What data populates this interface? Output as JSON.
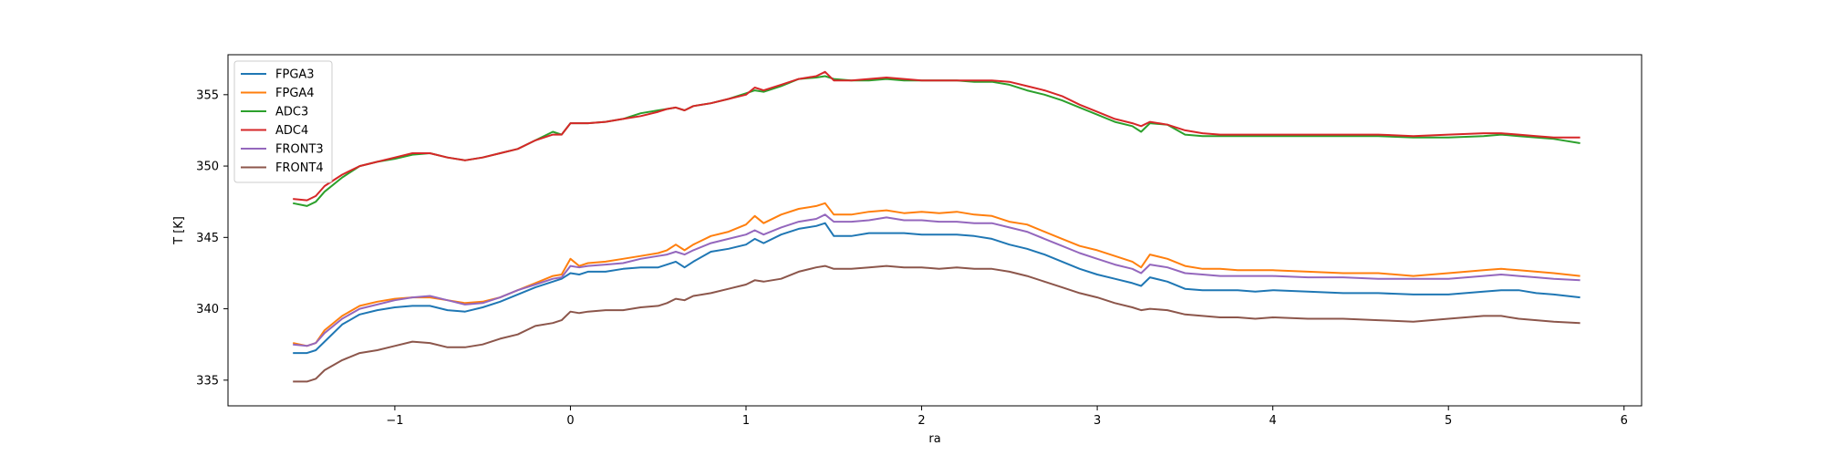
{
  "chart_data": {
    "type": "line",
    "title": "",
    "xlabel": "ra",
    "ylabel": "T [K]",
    "xlim": [
      -1.95,
      6.1
    ],
    "ylim": [
      333.2,
      357.8
    ],
    "xticks": [
      -1,
      0,
      1,
      2,
      3,
      4,
      5,
      6
    ],
    "xtick_labels": [
      "−1",
      "0",
      "1",
      "2",
      "3",
      "4",
      "5",
      "6"
    ],
    "yticks": [
      335,
      340,
      345,
      350,
      355
    ],
    "ytick_labels": [
      "335",
      "340",
      "345",
      "350",
      "355"
    ],
    "grid": false,
    "legend_position": "upper left",
    "series": [
      {
        "name": "FPGA3",
        "color": "#1f77b4",
        "x": [
          -1.58,
          -1.5,
          -1.45,
          -1.4,
          -1.3,
          -1.2,
          -1.1,
          -1.0,
          -0.9,
          -0.8,
          -0.7,
          -0.6,
          -0.5,
          -0.4,
          -0.3,
          -0.2,
          -0.1,
          -0.05,
          0.0,
          0.05,
          0.1,
          0.2,
          0.3,
          0.4,
          0.5,
          0.55,
          0.6,
          0.65,
          0.7,
          0.8,
          0.9,
          1.0,
          1.05,
          1.1,
          1.2,
          1.3,
          1.4,
          1.45,
          1.5,
          1.6,
          1.7,
          1.8,
          1.9,
          2.0,
          2.1,
          2.2,
          2.3,
          2.4,
          2.5,
          2.6,
          2.7,
          2.8,
          2.9,
          3.0,
          3.1,
          3.2,
          3.25,
          3.3,
          3.4,
          3.5,
          3.6,
          3.7,
          3.8,
          3.9,
          4.0,
          4.2,
          4.4,
          4.6,
          4.8,
          5.0,
          5.2,
          5.3,
          5.4,
          5.5,
          5.6,
          5.75
        ],
        "values": [
          336.9,
          336.9,
          337.1,
          337.7,
          338.9,
          339.6,
          339.9,
          340.1,
          340.2,
          340.2,
          339.9,
          339.8,
          340.1,
          340.5,
          341.0,
          341.5,
          341.9,
          342.1,
          342.5,
          342.4,
          342.6,
          342.6,
          342.8,
          342.9,
          342.9,
          343.1,
          343.3,
          342.9,
          343.3,
          344.0,
          344.2,
          344.5,
          344.9,
          344.6,
          345.2,
          345.6,
          345.8,
          346.0,
          345.1,
          345.1,
          345.3,
          345.3,
          345.3,
          345.2,
          345.2,
          345.2,
          345.1,
          344.9,
          344.5,
          344.2,
          343.8,
          343.3,
          342.8,
          342.4,
          342.1,
          341.8,
          341.6,
          342.2,
          341.9,
          341.4,
          341.3,
          341.3,
          341.3,
          341.2,
          341.3,
          341.2,
          341.1,
          341.1,
          341.0,
          341.0,
          341.2,
          341.3,
          341.3,
          341.1,
          341.0,
          340.8
        ]
      },
      {
        "name": "FPGA4",
        "color": "#ff7f0e",
        "x": [
          -1.58,
          -1.5,
          -1.45,
          -1.4,
          -1.3,
          -1.2,
          -1.1,
          -1.0,
          -0.9,
          -0.8,
          -0.7,
          -0.6,
          -0.5,
          -0.4,
          -0.3,
          -0.2,
          -0.1,
          -0.05,
          0.0,
          0.05,
          0.1,
          0.2,
          0.3,
          0.4,
          0.5,
          0.55,
          0.6,
          0.65,
          0.7,
          0.8,
          0.9,
          1.0,
          1.05,
          1.1,
          1.2,
          1.3,
          1.4,
          1.45,
          1.5,
          1.6,
          1.7,
          1.8,
          1.9,
          2.0,
          2.1,
          2.2,
          2.3,
          2.4,
          2.5,
          2.6,
          2.7,
          2.8,
          2.9,
          3.0,
          3.1,
          3.2,
          3.25,
          3.3,
          3.4,
          3.5,
          3.6,
          3.7,
          3.8,
          3.9,
          4.0,
          4.2,
          4.4,
          4.6,
          4.8,
          5.0,
          5.2,
          5.3,
          5.4,
          5.5,
          5.6,
          5.75
        ],
        "values": [
          337.6,
          337.4,
          337.6,
          338.5,
          339.5,
          340.2,
          340.5,
          340.7,
          340.8,
          340.8,
          340.6,
          340.4,
          340.5,
          340.8,
          341.3,
          341.8,
          342.3,
          342.4,
          343.5,
          343.0,
          343.2,
          343.3,
          343.5,
          343.7,
          343.9,
          344.1,
          344.5,
          344.1,
          344.5,
          345.1,
          345.4,
          345.9,
          346.5,
          346.0,
          346.6,
          347.0,
          347.2,
          347.4,
          346.6,
          346.6,
          346.8,
          346.9,
          346.7,
          346.8,
          346.7,
          346.8,
          346.6,
          346.5,
          346.1,
          345.9,
          345.4,
          344.9,
          344.4,
          344.1,
          343.7,
          343.3,
          342.9,
          343.8,
          343.5,
          343.0,
          342.8,
          342.8,
          342.7,
          342.7,
          342.7,
          342.6,
          342.5,
          342.5,
          342.3,
          342.5,
          342.7,
          342.8,
          342.7,
          342.6,
          342.5,
          342.3
        ]
      },
      {
        "name": "ADC3",
        "color": "#2ca02c",
        "x": [
          -1.58,
          -1.5,
          -1.45,
          -1.4,
          -1.3,
          -1.2,
          -1.1,
          -1.0,
          -0.9,
          -0.8,
          -0.7,
          -0.6,
          -0.5,
          -0.4,
          -0.3,
          -0.2,
          -0.1,
          -0.05,
          0.0,
          0.05,
          0.1,
          0.2,
          0.3,
          0.4,
          0.5,
          0.55,
          0.6,
          0.65,
          0.7,
          0.8,
          0.9,
          1.0,
          1.05,
          1.1,
          1.2,
          1.3,
          1.4,
          1.45,
          1.5,
          1.6,
          1.7,
          1.8,
          1.9,
          2.0,
          2.1,
          2.2,
          2.3,
          2.4,
          2.5,
          2.6,
          2.7,
          2.8,
          2.9,
          3.0,
          3.1,
          3.2,
          3.25,
          3.3,
          3.4,
          3.5,
          3.6,
          3.7,
          3.8,
          3.9,
          4.0,
          4.2,
          4.4,
          4.6,
          4.8,
          5.0,
          5.2,
          5.3,
          5.4,
          5.5,
          5.6,
          5.75
        ],
        "values": [
          347.4,
          347.2,
          347.5,
          348.2,
          349.2,
          350.0,
          350.3,
          350.5,
          350.8,
          350.9,
          350.6,
          350.4,
          350.6,
          350.9,
          351.2,
          351.8,
          352.4,
          352.2,
          353.0,
          353.0,
          353.0,
          353.1,
          353.3,
          353.7,
          353.9,
          354.0,
          354.1,
          353.9,
          354.2,
          354.4,
          354.7,
          355.1,
          355.3,
          355.2,
          355.6,
          356.1,
          356.2,
          356.3,
          356.1,
          356.0,
          356.0,
          356.1,
          356.0,
          356.0,
          356.0,
          356.0,
          355.9,
          355.9,
          355.7,
          355.3,
          355.0,
          354.6,
          354.1,
          353.6,
          353.1,
          352.8,
          352.4,
          353.0,
          352.9,
          352.2,
          352.1,
          352.1,
          352.1,
          352.1,
          352.1,
          352.1,
          352.1,
          352.1,
          352.0,
          352.0,
          352.1,
          352.2,
          352.1,
          352.0,
          351.9,
          351.6
        ]
      },
      {
        "name": "ADC4",
        "color": "#d62728",
        "x": [
          -1.58,
          -1.5,
          -1.45,
          -1.4,
          -1.3,
          -1.2,
          -1.1,
          -1.0,
          -0.9,
          -0.8,
          -0.7,
          -0.6,
          -0.5,
          -0.4,
          -0.3,
          -0.2,
          -0.1,
          -0.05,
          0.0,
          0.05,
          0.1,
          0.2,
          0.3,
          0.4,
          0.5,
          0.55,
          0.6,
          0.65,
          0.7,
          0.8,
          0.9,
          1.0,
          1.05,
          1.1,
          1.2,
          1.3,
          1.4,
          1.45,
          1.5,
          1.6,
          1.7,
          1.8,
          1.9,
          2.0,
          2.1,
          2.2,
          2.3,
          2.4,
          2.5,
          2.6,
          2.7,
          2.8,
          2.9,
          3.0,
          3.1,
          3.2,
          3.25,
          3.3,
          3.4,
          3.5,
          3.6,
          3.7,
          3.8,
          3.9,
          4.0,
          4.2,
          4.4,
          4.6,
          4.8,
          5.0,
          5.2,
          5.3,
          5.4,
          5.5,
          5.6,
          5.75
        ],
        "values": [
          347.7,
          347.6,
          347.9,
          348.6,
          349.4,
          350.0,
          350.3,
          350.6,
          350.9,
          350.9,
          350.6,
          350.4,
          350.6,
          350.9,
          351.2,
          351.8,
          352.2,
          352.2,
          353.0,
          353.0,
          353.0,
          353.1,
          353.3,
          353.5,
          353.8,
          354.0,
          354.1,
          353.9,
          354.2,
          354.4,
          354.7,
          355.0,
          355.5,
          355.3,
          355.7,
          356.1,
          356.3,
          356.6,
          356.0,
          356.0,
          356.1,
          356.2,
          356.1,
          356.0,
          356.0,
          356.0,
          356.0,
          356.0,
          355.9,
          355.6,
          355.3,
          354.9,
          354.3,
          353.8,
          353.3,
          353.0,
          352.8,
          353.1,
          352.9,
          352.5,
          352.3,
          352.2,
          352.2,
          352.2,
          352.2,
          352.2,
          352.2,
          352.2,
          352.1,
          352.2,
          352.3,
          352.3,
          352.2,
          352.1,
          352.0,
          352.0
        ]
      },
      {
        "name": "FRONT3",
        "color": "#9467bd",
        "x": [
          -1.58,
          -1.5,
          -1.45,
          -1.4,
          -1.3,
          -1.2,
          -1.1,
          -1.0,
          -0.9,
          -0.8,
          -0.7,
          -0.6,
          -0.5,
          -0.4,
          -0.3,
          -0.2,
          -0.1,
          -0.05,
          0.0,
          0.05,
          0.1,
          0.2,
          0.3,
          0.4,
          0.5,
          0.55,
          0.6,
          0.65,
          0.7,
          0.8,
          0.9,
          1.0,
          1.05,
          1.1,
          1.2,
          1.3,
          1.4,
          1.45,
          1.5,
          1.6,
          1.7,
          1.8,
          1.9,
          2.0,
          2.1,
          2.2,
          2.3,
          2.4,
          2.5,
          2.6,
          2.7,
          2.8,
          2.9,
          3.0,
          3.1,
          3.2,
          3.25,
          3.3,
          3.4,
          3.5,
          3.6,
          3.7,
          3.8,
          3.9,
          4.0,
          4.2,
          4.4,
          4.6,
          4.8,
          5.0,
          5.2,
          5.3,
          5.4,
          5.5,
          5.6,
          5.75
        ],
        "values": [
          337.5,
          337.4,
          337.6,
          338.3,
          339.3,
          340.0,
          340.3,
          340.6,
          340.8,
          340.9,
          340.6,
          340.3,
          340.4,
          340.8,
          341.3,
          341.7,
          342.1,
          342.2,
          343.0,
          342.9,
          343.0,
          343.1,
          343.2,
          343.5,
          343.7,
          343.8,
          344.0,
          343.8,
          344.1,
          344.6,
          344.9,
          345.2,
          345.5,
          345.2,
          345.7,
          346.1,
          346.3,
          346.6,
          346.1,
          346.1,
          346.2,
          346.4,
          346.2,
          346.2,
          346.1,
          346.1,
          346.0,
          346.0,
          345.7,
          345.4,
          344.9,
          344.4,
          343.9,
          343.5,
          343.1,
          342.8,
          342.5,
          343.1,
          342.9,
          342.5,
          342.4,
          342.3,
          342.3,
          342.3,
          342.3,
          342.2,
          342.2,
          342.1,
          342.1,
          342.1,
          342.3,
          342.4,
          342.3,
          342.2,
          342.1,
          342.0
        ]
      },
      {
        "name": "FRONT4",
        "color": "#8c564b",
        "x": [
          -1.58,
          -1.5,
          -1.45,
          -1.4,
          -1.3,
          -1.2,
          -1.1,
          -1.0,
          -0.9,
          -0.8,
          -0.7,
          -0.6,
          -0.5,
          -0.4,
          -0.3,
          -0.2,
          -0.1,
          -0.05,
          0.0,
          0.05,
          0.1,
          0.2,
          0.3,
          0.4,
          0.5,
          0.55,
          0.6,
          0.65,
          0.7,
          0.8,
          0.9,
          1.0,
          1.05,
          1.1,
          1.2,
          1.3,
          1.4,
          1.45,
          1.5,
          1.6,
          1.7,
          1.8,
          1.9,
          2.0,
          2.1,
          2.2,
          2.3,
          2.4,
          2.5,
          2.6,
          2.7,
          2.8,
          2.9,
          3.0,
          3.1,
          3.2,
          3.25,
          3.3,
          3.4,
          3.5,
          3.6,
          3.7,
          3.8,
          3.9,
          4.0,
          4.2,
          4.4,
          4.6,
          4.8,
          5.0,
          5.2,
          5.3,
          5.4,
          5.5,
          5.6,
          5.75
        ],
        "values": [
          334.9,
          334.9,
          335.1,
          335.7,
          336.4,
          336.9,
          337.1,
          337.4,
          337.7,
          337.6,
          337.3,
          337.3,
          337.5,
          337.9,
          338.2,
          338.8,
          339.0,
          339.2,
          339.8,
          339.7,
          339.8,
          339.9,
          339.9,
          340.1,
          340.2,
          340.4,
          340.7,
          340.6,
          340.9,
          341.1,
          341.4,
          341.7,
          342.0,
          341.9,
          342.1,
          342.6,
          342.9,
          343.0,
          342.8,
          342.8,
          342.9,
          343.0,
          342.9,
          342.9,
          342.8,
          342.9,
          342.8,
          342.8,
          342.6,
          342.3,
          341.9,
          341.5,
          341.1,
          340.8,
          340.4,
          340.1,
          339.9,
          340.0,
          339.9,
          339.6,
          339.5,
          339.4,
          339.4,
          339.3,
          339.4,
          339.3,
          339.3,
          339.2,
          339.1,
          339.3,
          339.5,
          339.5,
          339.3,
          339.2,
          339.1,
          339.0
        ]
      }
    ]
  }
}
